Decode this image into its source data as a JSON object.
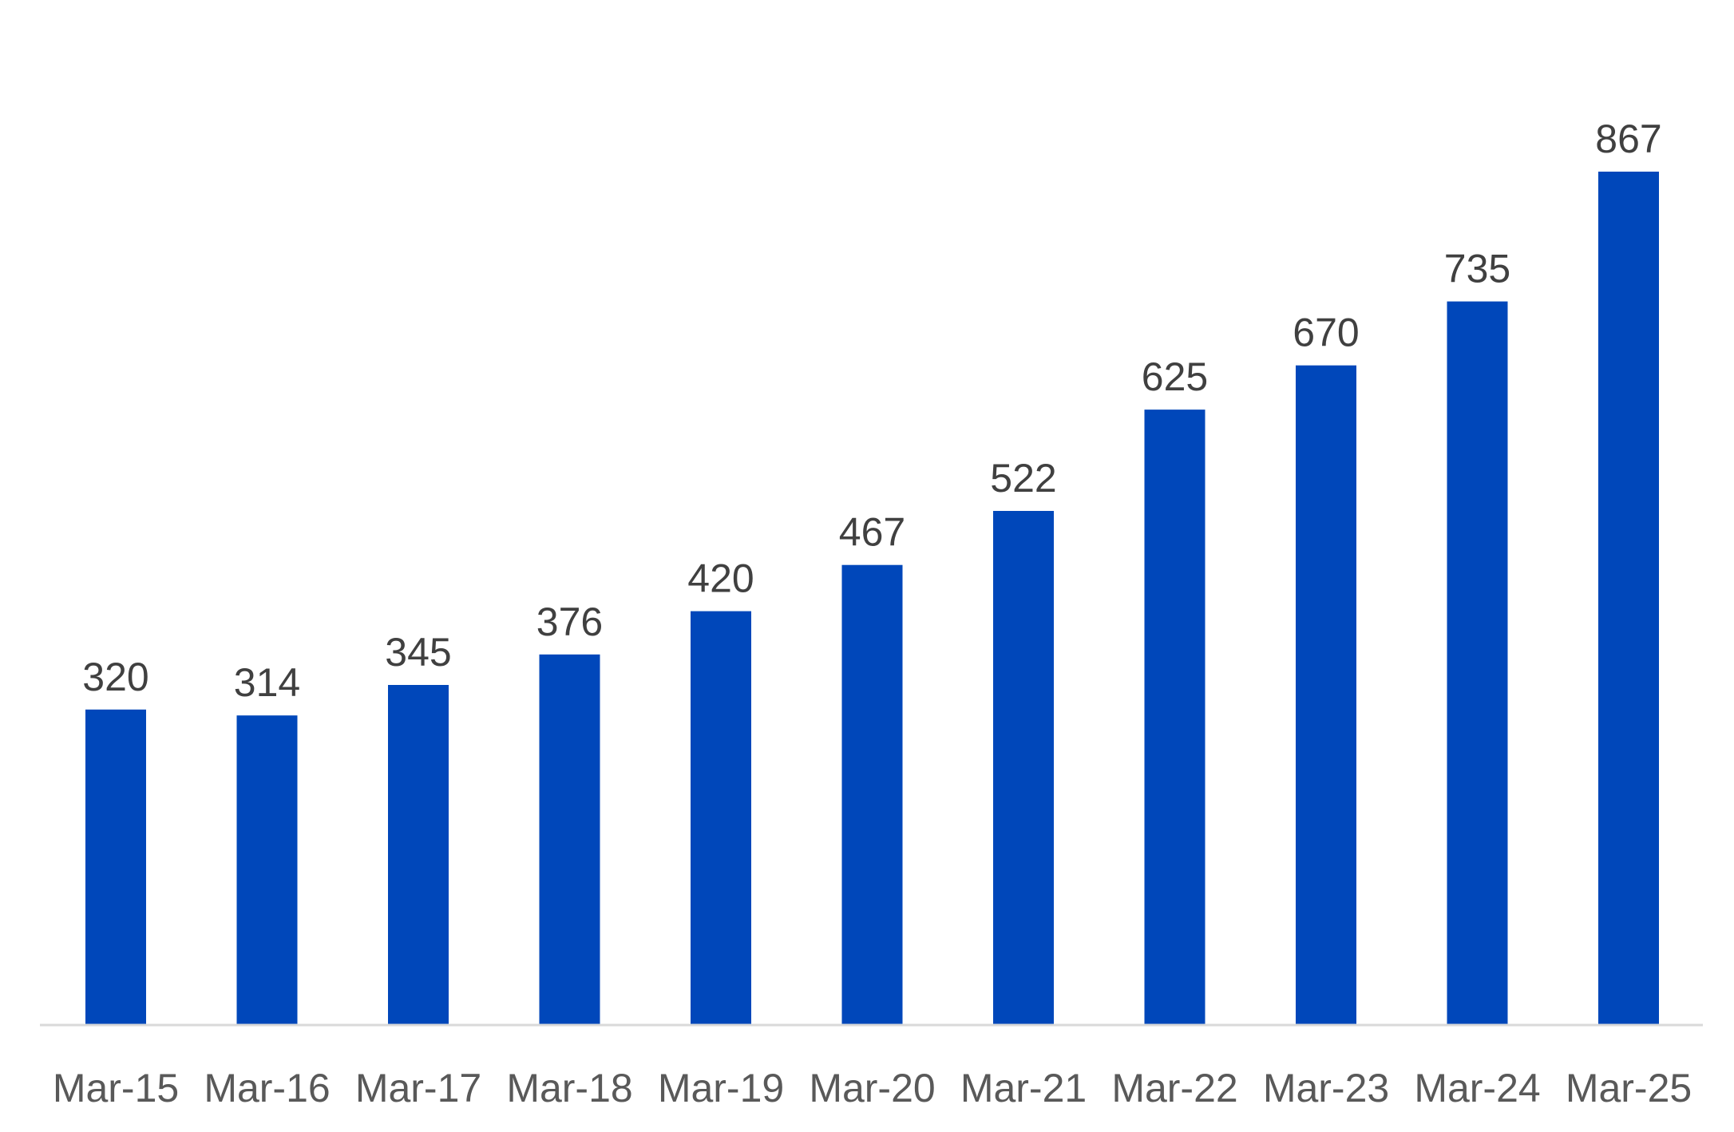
{
  "chart_data": {
    "type": "bar",
    "title": "",
    "xlabel": "",
    "ylabel": "",
    "categories": [
      "Mar-15",
      "Mar-16",
      "Mar-17",
      "Mar-18",
      "Mar-19",
      "Mar-20",
      "Mar-21",
      "Mar-22",
      "Mar-23",
      "Mar-24",
      "Mar-25"
    ],
    "series": [
      {
        "values": [
          320,
          314,
          345,
          376,
          420,
          467,
          522,
          625,
          670,
          735,
          867
        ],
        "color": "#0047BA"
      }
    ],
    "ylim": [
      0,
      1000
    ],
    "data_labels": true,
    "grid": false,
    "legend": "none",
    "axis_line_color": "#D9D9D9",
    "label_color": "#404040",
    "tick_color": "#595959"
  }
}
